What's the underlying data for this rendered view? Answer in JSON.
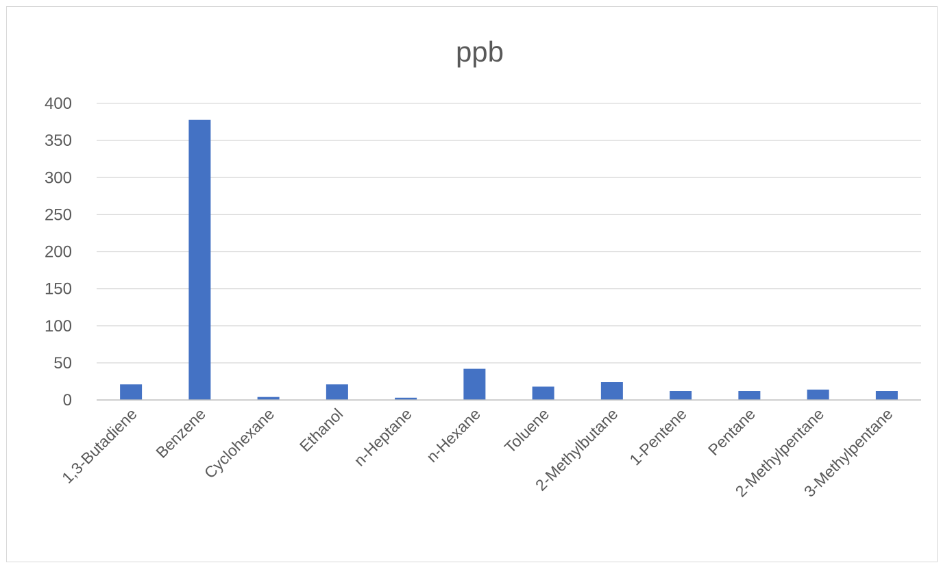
{
  "chart_data": {
    "type": "bar",
    "title": "ppb",
    "xlabel": "",
    "ylabel": "",
    "categories": [
      "1,3-Butadiene",
      "Benzene",
      "Cyclohexane",
      "Ethanol",
      "n-Heptane",
      "n-Hexane",
      "Toluene",
      "2-Methylbutane",
      "1-Pentene",
      "Pentane",
      "2-Methylpentane",
      "3-Methylpentane"
    ],
    "series": [
      {
        "values": [
          21,
          378,
          4,
          21,
          3,
          42,
          18,
          24,
          12,
          12,
          14,
          12
        ],
        "color": "#4472c4"
      }
    ],
    "ylim": [
      0,
      400
    ],
    "yticks": [
      0,
      50,
      100,
      150,
      200,
      250,
      300,
      350,
      400
    ],
    "grid": true,
    "legend": "none"
  }
}
